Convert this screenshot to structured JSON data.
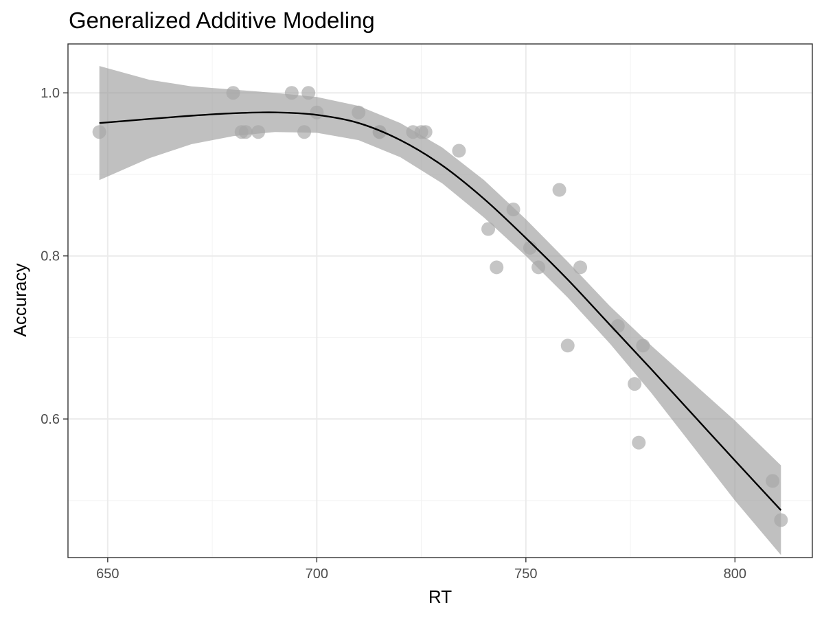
{
  "chart_data": {
    "type": "scatter",
    "title": "Generalized Additive Modeling",
    "xlabel": "RT",
    "ylabel": "Accuracy",
    "xlim": [
      640.5,
      818.5
    ],
    "ylim": [
      0.43,
      1.06
    ],
    "x_ticks": [
      650,
      700,
      750,
      800
    ],
    "y_ticks": [
      0.6,
      0.8,
      1.0
    ],
    "x_tick_labels": [
      "650",
      "700",
      "750",
      "800"
    ],
    "y_tick_labels": [
      "0.6",
      "0.8",
      "1.0"
    ],
    "x_minor": [
      675,
      725,
      775
    ],
    "y_minor": [
      0.5,
      0.7,
      0.9
    ],
    "grid": true,
    "colors": {
      "point": "#a6a6a6",
      "ribbon": "#999999",
      "line": "#000000",
      "grid": "#ebebeb",
      "border": "#333333"
    },
    "points": [
      {
        "x": 648,
        "y": 0.952
      },
      {
        "x": 680,
        "y": 1.0
      },
      {
        "x": 682,
        "y": 0.952
      },
      {
        "x": 683,
        "y": 0.952
      },
      {
        "x": 686,
        "y": 0.952
      },
      {
        "x": 694,
        "y": 1.0
      },
      {
        "x": 697,
        "y": 0.952
      },
      {
        "x": 698,
        "y": 1.0
      },
      {
        "x": 700,
        "y": 0.976
      },
      {
        "x": 710,
        "y": 0.976
      },
      {
        "x": 715,
        "y": 0.952
      },
      {
        "x": 715,
        "y": 0.952
      },
      {
        "x": 723,
        "y": 0.952
      },
      {
        "x": 725,
        "y": 0.952
      },
      {
        "x": 726,
        "y": 0.952
      },
      {
        "x": 734,
        "y": 0.929
      },
      {
        "x": 741,
        "y": 0.833
      },
      {
        "x": 743,
        "y": 0.786
      },
      {
        "x": 747,
        "y": 0.857
      },
      {
        "x": 751,
        "y": 0.81
      },
      {
        "x": 753,
        "y": 0.786
      },
      {
        "x": 758,
        "y": 0.881
      },
      {
        "x": 760,
        "y": 0.69
      },
      {
        "x": 763,
        "y": 0.786
      },
      {
        "x": 772,
        "y": 0.714
      },
      {
        "x": 776,
        "y": 0.643
      },
      {
        "x": 777,
        "y": 0.571
      },
      {
        "x": 778,
        "y": 0.69
      },
      {
        "x": 809,
        "y": 0.524
      },
      {
        "x": 811,
        "y": 0.476
      }
    ],
    "fit": [
      {
        "x": 648,
        "y": 0.963,
        "lower": 0.893,
        "upper": 1.033
      },
      {
        "x": 660,
        "y": 0.968,
        "lower": 0.92,
        "upper": 1.016
      },
      {
        "x": 670,
        "y": 0.972,
        "lower": 0.937,
        "upper": 1.008
      },
      {
        "x": 680,
        "y": 0.975,
        "lower": 0.947,
        "upper": 1.004
      },
      {
        "x": 690,
        "y": 0.976,
        "lower": 0.952,
        "upper": 1.0
      },
      {
        "x": 700,
        "y": 0.973,
        "lower": 0.951,
        "upper": 0.995
      },
      {
        "x": 710,
        "y": 0.963,
        "lower": 0.942,
        "upper": 0.984
      },
      {
        "x": 720,
        "y": 0.942,
        "lower": 0.921,
        "upper": 0.963
      },
      {
        "x": 730,
        "y": 0.911,
        "lower": 0.889,
        "upper": 0.933
      },
      {
        "x": 740,
        "y": 0.87,
        "lower": 0.847,
        "upper": 0.893
      },
      {
        "x": 750,
        "y": 0.822,
        "lower": 0.8,
        "upper": 0.845
      },
      {
        "x": 760,
        "y": 0.771,
        "lower": 0.749,
        "upper": 0.793
      },
      {
        "x": 770,
        "y": 0.716,
        "lower": 0.693,
        "upper": 0.739
      },
      {
        "x": 780,
        "y": 0.661,
        "lower": 0.632,
        "upper": 0.69
      },
      {
        "x": 790,
        "y": 0.605,
        "lower": 0.566,
        "upper": 0.644
      },
      {
        "x": 800,
        "y": 0.549,
        "lower": 0.5,
        "upper": 0.598
      },
      {
        "x": 811,
        "y": 0.488,
        "lower": 0.433,
        "upper": 0.543
      }
    ]
  }
}
